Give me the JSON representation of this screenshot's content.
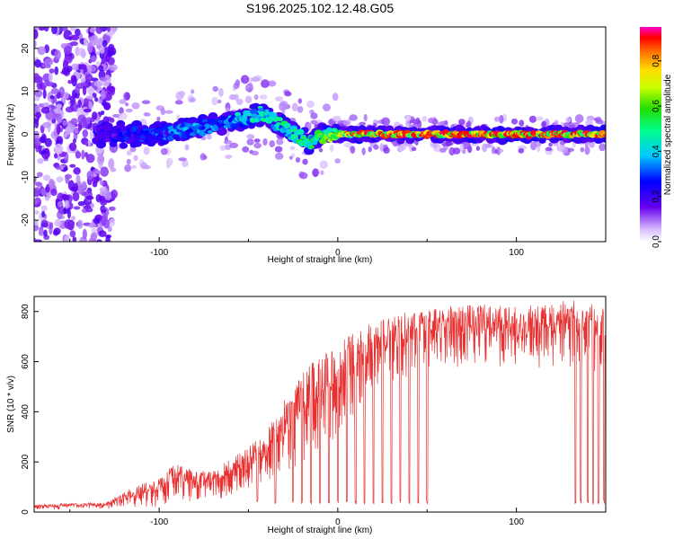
{
  "title": "S196.2025.102.12.48.G05",
  "chart_data": [
    {
      "type": "heatmap",
      "xlabel": "Height of straight line (km)",
      "ylabel": "Frequency (Hz)",
      "xlim": [
        -170,
        150
      ],
      "ylim": [
        -25,
        25
      ],
      "x_ticks": [
        -100,
        0,
        100
      ],
      "y_ticks": [
        -20,
        -10,
        0,
        10,
        20
      ],
      "grid": false,
      "colorbar": {
        "label": "Normalized spectral amplitude",
        "range": [
          0,
          0.95
        ],
        "ticks": [
          0.0,
          0.2,
          0.4,
          0.6,
          0.8
        ]
      },
      "ridge": {
        "description_of_shape": "frequency ridge centred near 0 Hz",
        "x": [
          -140,
          -120,
          -100,
          -85,
          -70,
          -60,
          -50,
          -42,
          -35,
          -28,
          -20,
          -14,
          -8,
          0,
          10,
          30,
          50,
          70,
          90,
          110,
          130,
          150
        ],
        "y": [
          0,
          0,
          0,
          1,
          2,
          3,
          4,
          5,
          3,
          1,
          -1,
          -2,
          0,
          0,
          0,
          0,
          0,
          0,
          0,
          0,
          0,
          0
        ],
        "amplitude": [
          0.2,
          0.3,
          0.35,
          0.4,
          0.4,
          0.45,
          0.5,
          0.5,
          0.55,
          0.55,
          0.6,
          0.6,
          0.65,
          0.75,
          0.8,
          0.85,
          0.9,
          0.92,
          0.92,
          0.9,
          0.88,
          0.85
        ]
      }
    },
    {
      "type": "line",
      "xlabel": "Height of straight line (km)",
      "ylabel": "SNR (10 * v/v)",
      "xlim": [
        -170,
        150
      ],
      "ylim": [
        0,
        860
      ],
      "x_ticks": [
        -100,
        0,
        100
      ],
      "y_ticks": [
        0,
        200,
        400,
        600,
        800
      ],
      "grid": false,
      "color": "#e83030",
      "envelope": {
        "x": [
          -170,
          -150,
          -130,
          -115,
          -100,
          -90,
          -80,
          -70,
          -60,
          -50,
          -40,
          -30,
          -20,
          -10,
          0,
          10,
          20,
          30,
          40,
          50,
          60,
          80,
          100,
          120,
          130,
          140,
          150
        ],
        "low": [
          10,
          10,
          12,
          15,
          20,
          30,
          40,
          50,
          60,
          80,
          100,
          150,
          200,
          250,
          300,
          400,
          500,
          520,
          540,
          560,
          570,
          580,
          580,
          570,
          560,
          560,
          560
        ],
        "high": [
          30,
          35,
          40,
          100,
          140,
          200,
          160,
          170,
          210,
          260,
          340,
          450,
          560,
          620,
          660,
          740,
          760,
          780,
          800,
          810,
          820,
          830,
          820,
          830,
          850,
          840,
          830
        ]
      },
      "dropouts_x": [
        -45,
        -35,
        -25,
        -20,
        -15,
        -10,
        -5,
        0,
        5,
        10,
        15,
        20,
        25,
        30,
        35,
        40,
        45,
        50,
        133,
        136,
        140,
        143,
        146,
        149
      ]
    }
  ]
}
